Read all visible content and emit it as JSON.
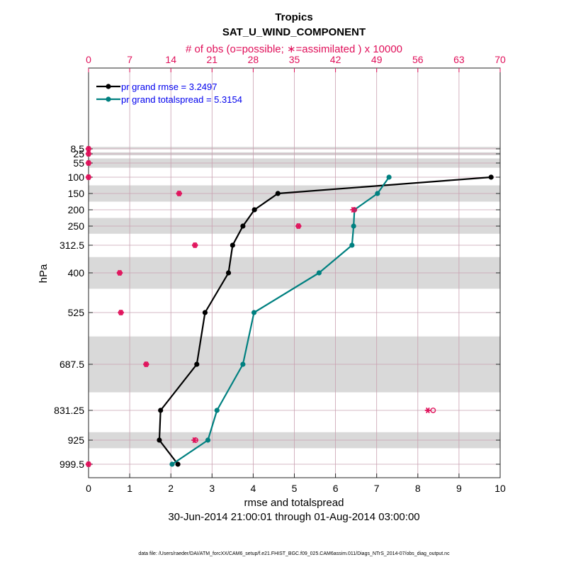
{
  "chart_data": {
    "type": "line",
    "title": "Tropics",
    "subtitle": "SAT_U_WIND_COMPONENT",
    "top_axis_label": "# of obs (o=possible; ∗=assimilated ) x 10000",
    "xlabel": "rmse and totalspread",
    "ylabel": "hPa",
    "date_range": "30-Jun-2014 21:00:01 through 01-Aug-2014 03:00:00",
    "footnote": "data file: /Users/raeder/DAI/ATM_forcXX/CAM6_setup/f.e21.FHIST_BGC.f09_025.CAM6assim.011/Diags_NTrS_2014-07/obs_diag_output.nc",
    "xlim": [
      0,
      10
    ],
    "x_ticks": [
      "0",
      "1",
      "2",
      "3",
      "4",
      "5",
      "6",
      "7",
      "8",
      "9",
      "10"
    ],
    "top_xlim": [
      0,
      70
    ],
    "top_ticks": [
      "0",
      "7",
      "14",
      "21",
      "28",
      "35",
      "42",
      "49",
      "56",
      "63",
      "70"
    ],
    "levels": [
      8.5,
      25,
      55,
      100,
      150,
      200,
      250,
      312.5,
      400,
      525,
      687.5,
      831.25,
      925,
      999.5
    ],
    "level_labels": [
      "8.5",
      "25",
      "55",
      "100",
      "150",
      "200",
      "250",
      "312.5",
      "400",
      "525",
      "687.5",
      "831.25",
      "925",
      "999.5"
    ],
    "series": [
      {
        "name": "rmse",
        "legend": "pr grand rmse = 3.2497",
        "color": "#000000",
        "points": [
          {
            "level": 100,
            "x": 9.78
          },
          {
            "level": 150,
            "x": 4.6
          },
          {
            "level": 200,
            "x": 4.03
          },
          {
            "level": 250,
            "x": 3.75
          },
          {
            "level": 312.5,
            "x": 3.5
          },
          {
            "level": 400,
            "x": 3.4
          },
          {
            "level": 525,
            "x": 2.83
          },
          {
            "level": 687.5,
            "x": 2.63
          },
          {
            "level": 831.25,
            "x": 1.75
          },
          {
            "level": 925,
            "x": 1.72
          },
          {
            "level": 999.5,
            "x": 2.17
          }
        ]
      },
      {
        "name": "totalspread",
        "legend": "pr grand totalspread = 5.3154",
        "color": "#008080",
        "points": [
          {
            "level": 100,
            "x": 7.3
          },
          {
            "level": 150,
            "x": 7.02
          },
          {
            "level": 200,
            "x": 6.46
          },
          {
            "level": 250,
            "x": 6.44
          },
          {
            "level": 312.5,
            "x": 6.4
          },
          {
            "level": 400,
            "x": 5.6
          },
          {
            "level": 525,
            "x": 4.02
          },
          {
            "level": 687.5,
            "x": 3.75
          },
          {
            "level": 831.25,
            "x": 3.12
          },
          {
            "level": 925,
            "x": 2.9
          },
          {
            "level": 999.5,
            "x": 2.03
          }
        ]
      }
    ],
    "obs_counts": {
      "color": "#e0105a",
      "assimilated": [
        {
          "level": 8.5,
          "value": 0
        },
        {
          "level": 25,
          "value": 0
        },
        {
          "level": 55,
          "value": 0
        },
        {
          "level": 100,
          "value": 0
        },
        {
          "level": 150,
          "value": 15.4
        },
        {
          "level": 200,
          "value": 45
        },
        {
          "level": 250,
          "value": 35.7
        },
        {
          "level": 312.5,
          "value": 18.1
        },
        {
          "level": 400,
          "value": 5.3
        },
        {
          "level": 525,
          "value": 5.5
        },
        {
          "level": 687.5,
          "value": 9.8
        },
        {
          "level": 831.25,
          "value": 57.7
        },
        {
          "level": 925,
          "value": 18
        },
        {
          "level": 999.5,
          "value": 0
        }
      ],
      "possible": [
        {
          "level": 8.5,
          "value": 0
        },
        {
          "level": 25,
          "value": 0
        },
        {
          "level": 55,
          "value": 0
        },
        {
          "level": 100,
          "value": 0
        },
        {
          "level": 150,
          "value": 15.4
        },
        {
          "level": 200,
          "value": 45.2
        },
        {
          "level": 250,
          "value": 35.7
        },
        {
          "level": 312.5,
          "value": 18.1
        },
        {
          "level": 400,
          "value": 5.3
        },
        {
          "level": 525,
          "value": 5.5
        },
        {
          "level": 687.5,
          "value": 9.8
        },
        {
          "level": 831.25,
          "value": 58.6
        },
        {
          "level": 925,
          "value": 18.2
        },
        {
          "level": 999.5,
          "value": 0
        }
      ]
    },
    "shaded_layers": [
      [
        5,
        10
      ],
      [
        20,
        30
      ],
      [
        40,
        70
      ],
      [
        125,
        175
      ],
      [
        225,
        275
      ],
      [
        350,
        450
      ],
      [
        600,
        775
      ],
      [
        900,
        950
      ]
    ],
    "legend_position": "top-left",
    "grid": true
  }
}
